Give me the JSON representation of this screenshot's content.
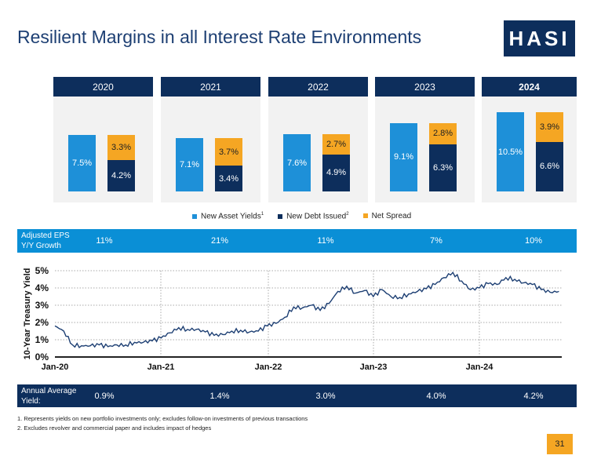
{
  "header": {
    "title": "Resilient Margins in all Interest Rate Environments",
    "logo_text": "HASI"
  },
  "colors": {
    "new_asset": "#1e90d8",
    "new_debt": "#0d2e5c",
    "spread": "#f5a623",
    "eps_band": "#0a8fd6",
    "yield_band": "#0d2e5c"
  },
  "years": [
    {
      "year": "2020",
      "new_asset": 7.5,
      "new_debt": 4.2,
      "spread": 3.3,
      "new_asset_label": "7.5%",
      "new_debt_label": "4.2%",
      "spread_label": "3.3%"
    },
    {
      "year": "2021",
      "new_asset": 7.1,
      "new_debt": 3.4,
      "spread": 3.7,
      "new_asset_label": "7.1%",
      "new_debt_label": "3.4%",
      "spread_label": "3.7%"
    },
    {
      "year": "2022",
      "new_asset": 7.6,
      "new_debt": 4.9,
      "spread": 2.7,
      "new_asset_label": "7.6%",
      "new_debt_label": "4.9%",
      "spread_label": "2.7%"
    },
    {
      "year": "2023",
      "new_asset": 9.1,
      "new_debt": 6.3,
      "spread": 2.8,
      "new_asset_label": "9.1%",
      "new_debt_label": "6.3%",
      "spread_label": "2.8%"
    },
    {
      "year": "2024",
      "new_asset": 10.5,
      "new_debt": 6.6,
      "spread": 3.9,
      "new_asset_label": "10.5%",
      "new_debt_label": "6.6%",
      "spread_label": "3.9%"
    }
  ],
  "legend": {
    "new_asset": "New Asset Yields",
    "new_asset_sup": "1",
    "new_debt": "New Debt Issued",
    "new_debt_sup": "2",
    "spread": "Net Spread"
  },
  "eps": {
    "label_line1": "Adjusted EPS",
    "label_line2": "Y/Y Growth",
    "values": [
      "11%",
      "21%",
      "11%",
      "7%",
      "10%"
    ]
  },
  "annual_yield": {
    "label_line1": "Annual Average",
    "label_line2": "Yield:",
    "values": [
      "0.9%",
      "1.4%",
      "3.0%",
      "4.0%",
      "4.2%"
    ]
  },
  "chart_data": {
    "type": "line",
    "title": "",
    "ylabel": "10-Year Treasury Yield",
    "xlabel": "",
    "ylim": [
      0,
      5
    ],
    "yticks": [
      "0%",
      "1%",
      "2%",
      "3%",
      "4%",
      "5%"
    ],
    "xticks": [
      "Jan-20",
      "Jan-21",
      "Jan-22",
      "Jan-23",
      "Jan-24"
    ],
    "grid": true,
    "series": [
      {
        "name": "10-Year Treasury Yield",
        "start": "Jan-20",
        "frequency": "monthly",
        "values": [
          1.8,
          1.5,
          0.7,
          0.65,
          0.65,
          0.7,
          0.6,
          0.7,
          0.7,
          0.85,
          0.85,
          0.93,
          1.1,
          1.4,
          1.7,
          1.6,
          1.6,
          1.45,
          1.25,
          1.3,
          1.5,
          1.55,
          1.45,
          1.5,
          1.8,
          1.95,
          2.3,
          2.9,
          2.85,
          3.0,
          2.7,
          3.1,
          3.8,
          4.1,
          3.7,
          3.85,
          3.5,
          3.9,
          3.5,
          3.45,
          3.65,
          3.8,
          3.95,
          4.2,
          4.6,
          4.9,
          4.4,
          3.9,
          4.0,
          4.25,
          4.2,
          4.6,
          4.5,
          4.3,
          4.2,
          3.9,
          3.75,
          3.8
        ]
      }
    ]
  },
  "footnotes": [
    "1.   Represents yields on new portfolio investments only; excludes follow-on investments of previous transactions",
    "2.   Excludes revolver and commercial paper and includes impact of hedges"
  ],
  "page_number": "31"
}
